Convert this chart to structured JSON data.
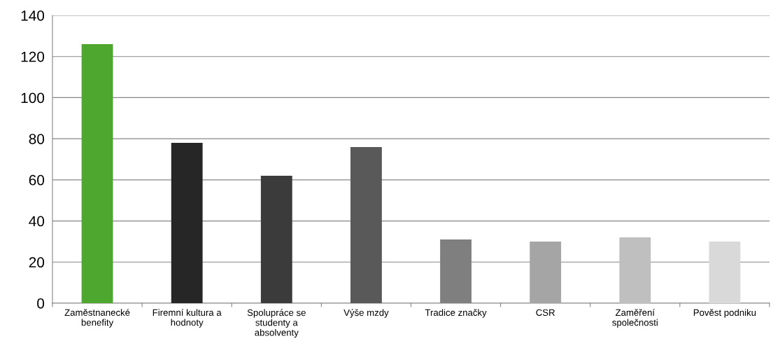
{
  "chart_data": {
    "type": "bar",
    "categories": [
      "Zaměstnanecké\nbenefity",
      "Firemní kultura a\nhodnoty",
      "Spolupráce se\nstudenty a\nabsolventy",
      "Výše mzdy",
      "Tradice značky",
      "CSR",
      "Zaměření\nspolečnosti",
      "Pověst podniku"
    ],
    "values": [
      126,
      78,
      62,
      76,
      31,
      30,
      32,
      30
    ],
    "colors": [
      "#4ea72e",
      "#262626",
      "#3b3b3b",
      "#595959",
      "#7f7f7f",
      "#a5a5a5",
      "#bfbfbf",
      "#d9d9d9"
    ],
    "ylim": [
      0,
      140
    ],
    "yticks": [
      0,
      20,
      40,
      60,
      80,
      100,
      120,
      140
    ],
    "grid": "y"
  }
}
